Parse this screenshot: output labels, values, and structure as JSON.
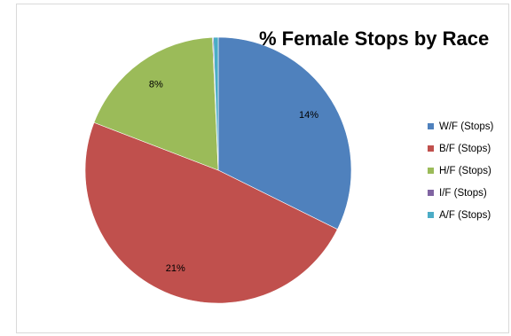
{
  "chart_data": {
    "type": "pie",
    "title": "% Female Stops by Race",
    "legend_position": "right",
    "slices": [
      {
        "name": "W/F (Stops)",
        "value": 14,
        "label": "14%",
        "color": "#4f81bd"
      },
      {
        "name": "B/F (Stops)",
        "value": 21,
        "label": "21%",
        "color": "#c0504d"
      },
      {
        "name": "H/F (Stops)",
        "value": 8,
        "label": "8%",
        "color": "#9bbb59"
      },
      {
        "name": "I/F (Stops)",
        "value": 0.05,
        "label": "",
        "color": "#8064a2"
      },
      {
        "name": "A/F (Stops)",
        "value": 0.25,
        "label": "",
        "color": "#4bacc6"
      }
    ]
  }
}
